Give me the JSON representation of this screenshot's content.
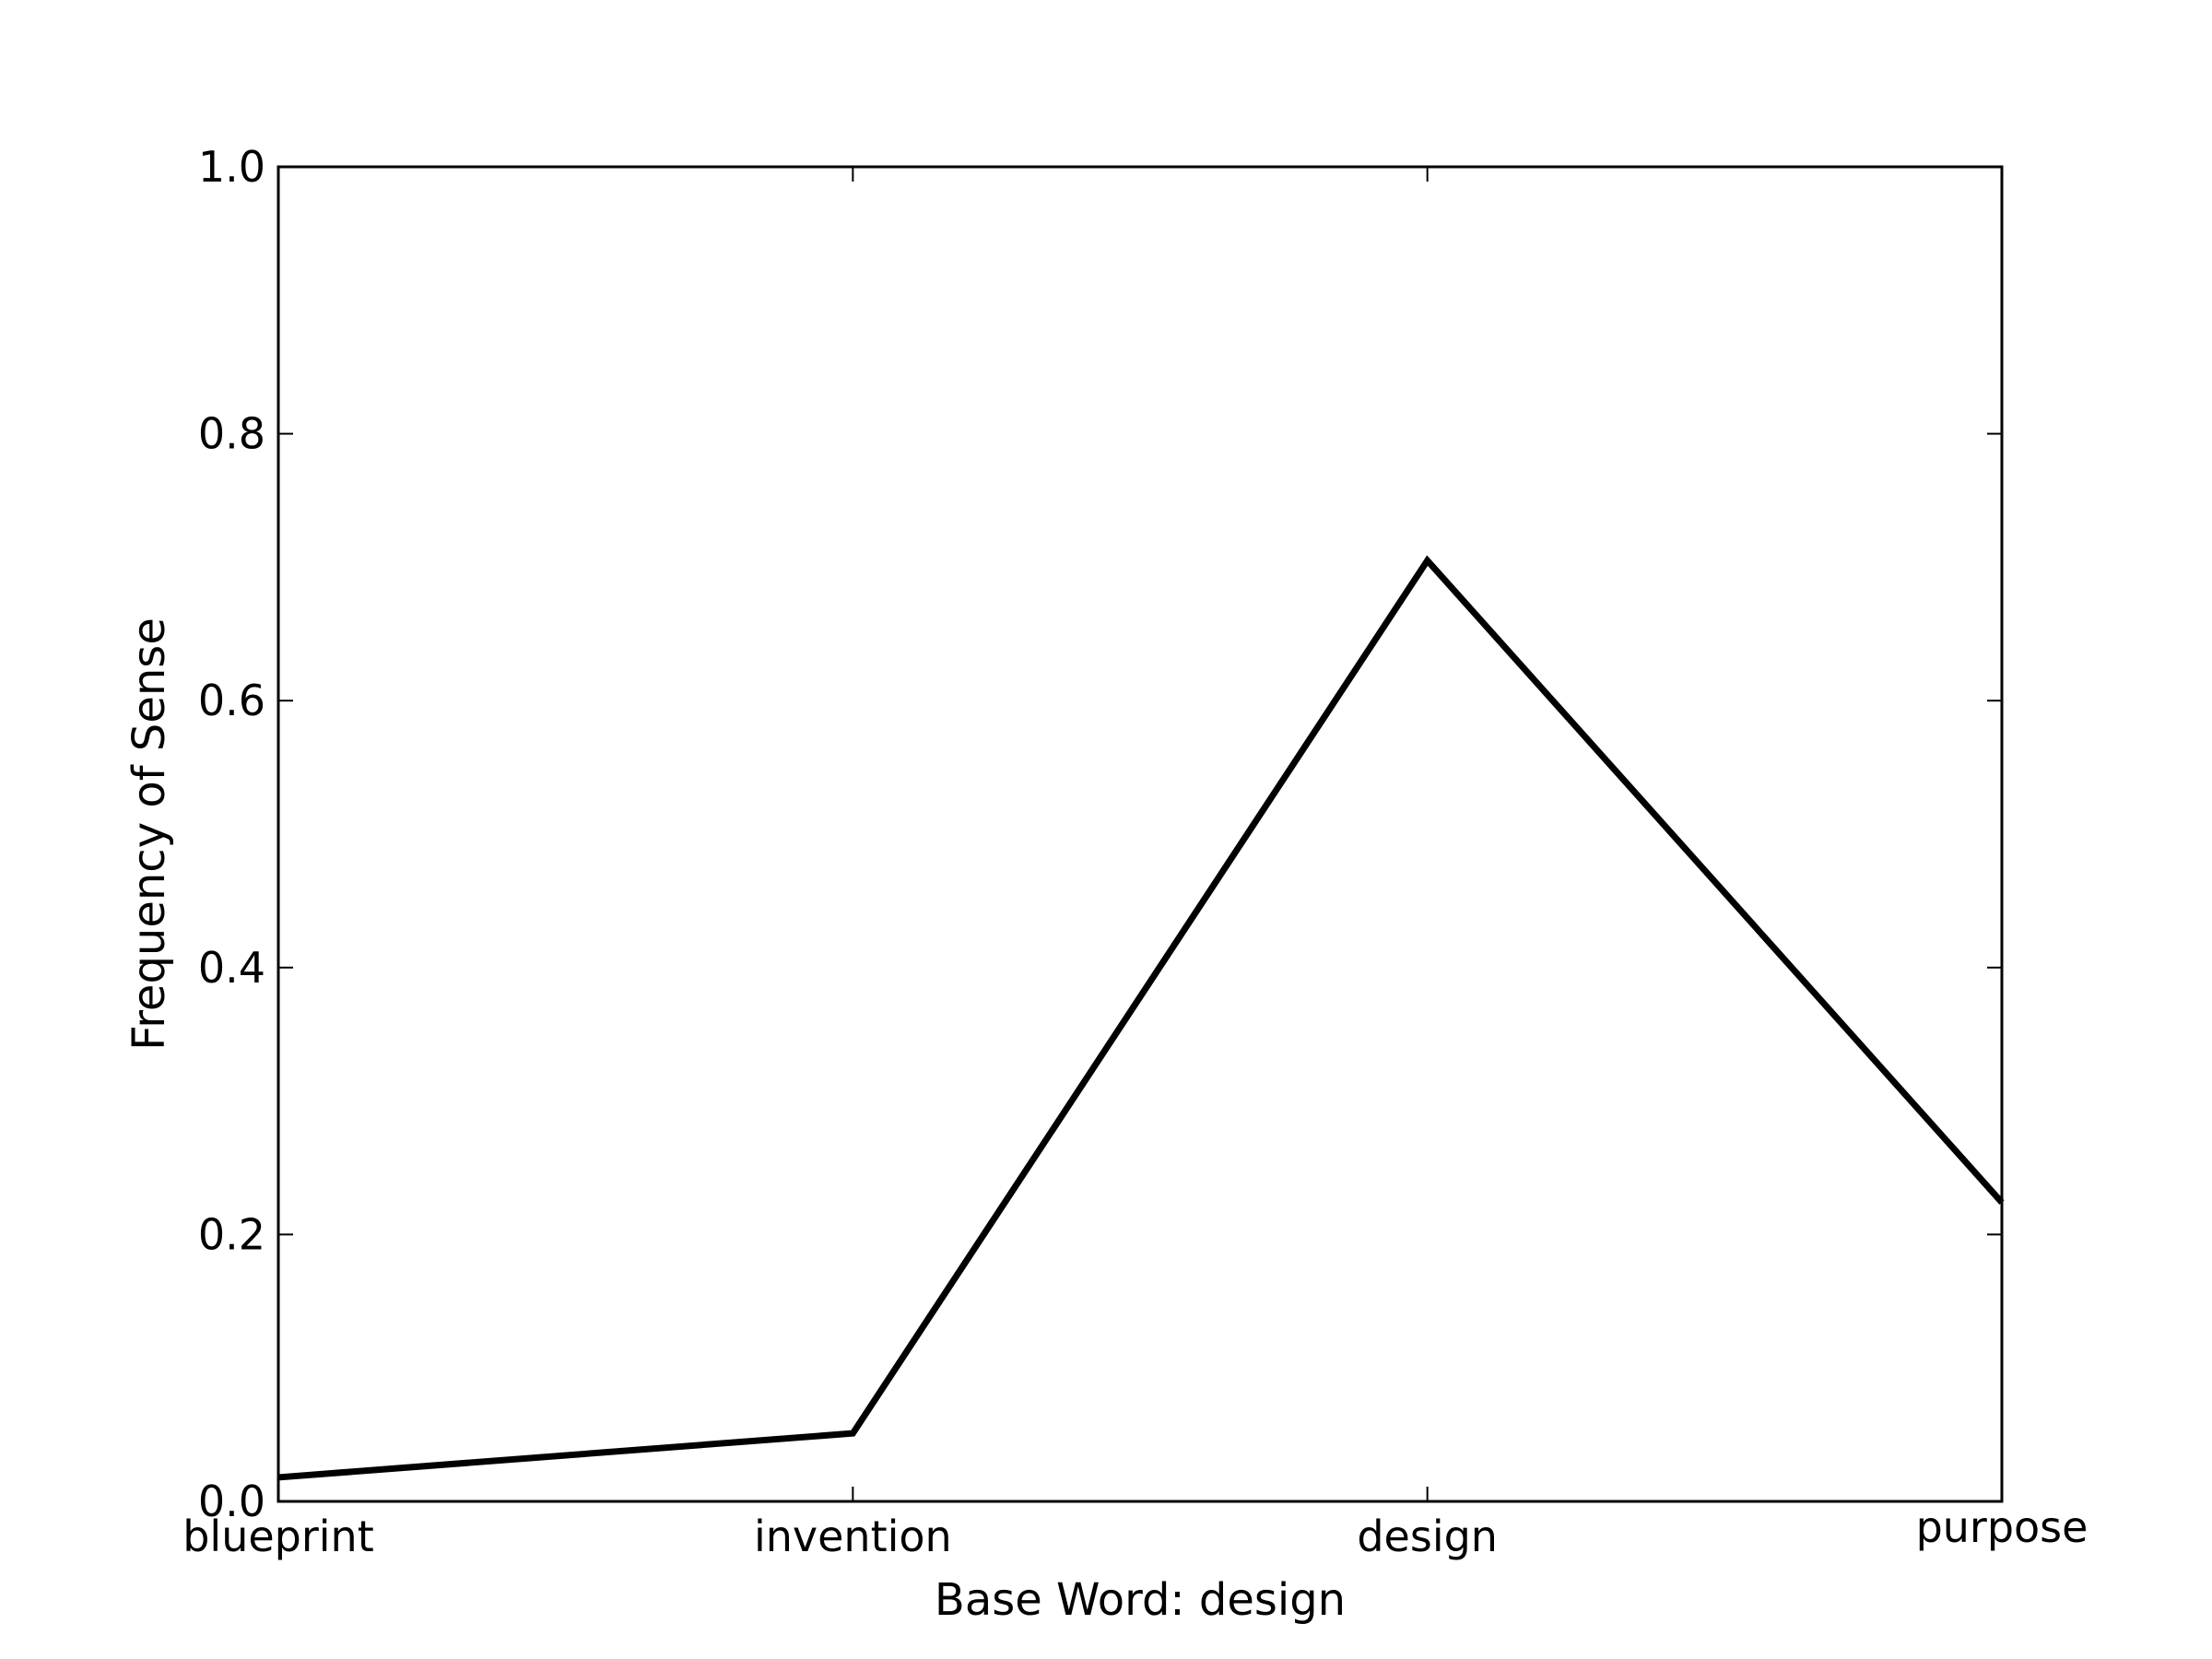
{
  "chart_data": {
    "type": "line",
    "title": "",
    "xlabel": "Base Word: design",
    "ylabel": "Frequency of Sense",
    "categories": [
      "blueprint",
      "invention",
      "design",
      "purpose"
    ],
    "series": [
      {
        "values": [
          0.018,
          0.051,
          0.705,
          0.224
        ]
      }
    ],
    "ylim": [
      0.0,
      1.0
    ],
    "yticks": [
      "0.0",
      "0.2",
      "0.4",
      "0.6",
      "0.8",
      "1.0"
    ],
    "grid": false,
    "line_color": "#000000"
  }
}
